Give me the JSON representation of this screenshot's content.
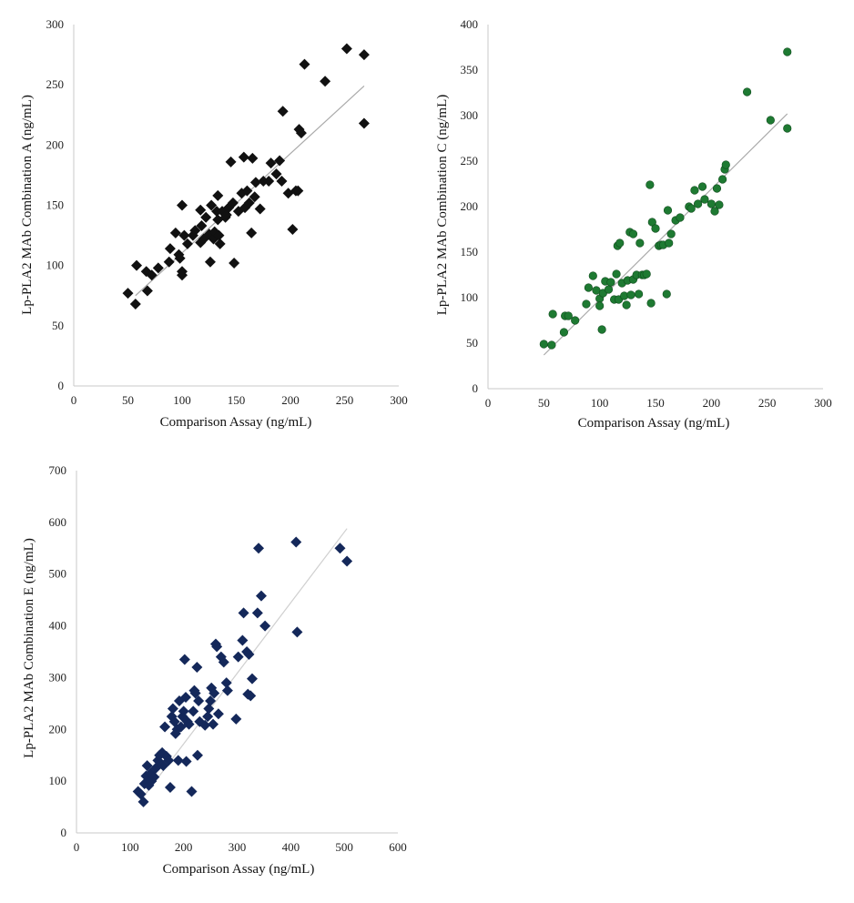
{
  "chart_data": [
    {
      "id": "A",
      "type": "scatter",
      "marker": "diamond",
      "color": "#111111",
      "xlabel": "Comparison Assay (ng/mL)",
      "ylabel": "Lp-PLA2 MAb Combination A (ng/mL)",
      "xlim": [
        0,
        300
      ],
      "ylim": [
        0,
        300
      ],
      "xticks": [
        0,
        50,
        100,
        150,
        200,
        250,
        300
      ],
      "yticks": [
        0,
        50,
        100,
        150,
        200,
        250,
        300
      ],
      "trendline": {
        "x": [
          57,
          268
        ],
        "y": [
          75,
          249
        ],
        "color": "#aaaaaa"
      },
      "points": [
        [
          50,
          77
        ],
        [
          57,
          68
        ],
        [
          58,
          100
        ],
        [
          67,
          95
        ],
        [
          68,
          79
        ],
        [
          72,
          92
        ],
        [
          78,
          98
        ],
        [
          88,
          103
        ],
        [
          89,
          114
        ],
        [
          94,
          127
        ],
        [
          97,
          109
        ],
        [
          98,
          106
        ],
        [
          100,
          95
        ],
        [
          100,
          92
        ],
        [
          100,
          150
        ],
        [
          102,
          125
        ],
        [
          105,
          118
        ],
        [
          110,
          125
        ],
        [
          112,
          129
        ],
        [
          117,
          119
        ],
        [
          117,
          146
        ],
        [
          118,
          133
        ],
        [
          120,
          122
        ],
        [
          122,
          140
        ],
        [
          125,
          126
        ],
        [
          126,
          103
        ],
        [
          127,
          150
        ],
        [
          129,
          122
        ],
        [
          130,
          128
        ],
        [
          132,
          145
        ],
        [
          133,
          158
        ],
        [
          133,
          138
        ],
        [
          134,
          125
        ],
        [
          135,
          118
        ],
        [
          137,
          145
        ],
        [
          140,
          140
        ],
        [
          141,
          142
        ],
        [
          143,
          148
        ],
        [
          145,
          186
        ],
        [
          147,
          152
        ],
        [
          148,
          102
        ],
        [
          152,
          145
        ],
        [
          155,
          160
        ],
        [
          157,
          190
        ],
        [
          158,
          148
        ],
        [
          160,
          162
        ],
        [
          162,
          152
        ],
        [
          164,
          127
        ],
        [
          165,
          189
        ],
        [
          167,
          157
        ],
        [
          168,
          169
        ],
        [
          172,
          147
        ],
        [
          175,
          170
        ],
        [
          180,
          170
        ],
        [
          182,
          185
        ],
        [
          187,
          176
        ],
        [
          190,
          187
        ],
        [
          192,
          170
        ],
        [
          193,
          228
        ],
        [
          198,
          160
        ],
        [
          202,
          130
        ],
        [
          205,
          162
        ],
        [
          207,
          162
        ],
        [
          208,
          213
        ],
        [
          210,
          210
        ],
        [
          213,
          267
        ],
        [
          232,
          253
        ],
        [
          252,
          280
        ],
        [
          268,
          275
        ],
        [
          268,
          218
        ]
      ]
    },
    {
      "id": "C",
      "type": "scatter",
      "marker": "circle",
      "color": "#1e7a32",
      "xlabel": "Comparison Assay (ng/mL)",
      "ylabel": "Lp-PLA2 MAb Combination C (ng/mL)",
      "xlim": [
        0,
        300
      ],
      "ylim": [
        0,
        400
      ],
      "xticks": [
        0,
        50,
        100,
        150,
        200,
        250,
        300
      ],
      "yticks": [
        0,
        50,
        100,
        150,
        200,
        250,
        300,
        350,
        400
      ],
      "trendline": {
        "x": [
          50,
          268
        ],
        "y": [
          37,
          302
        ],
        "color": "#aaaaaa"
      },
      "points": [
        [
          50,
          49
        ],
        [
          57,
          48
        ],
        [
          58,
          82
        ],
        [
          68,
          62
        ],
        [
          69,
          80
        ],
        [
          72,
          80
        ],
        [
          78,
          75
        ],
        [
          88,
          93
        ],
        [
          90,
          111
        ],
        [
          94,
          124
        ],
        [
          97,
          108
        ],
        [
          100,
          99
        ],
        [
          100,
          91
        ],
        [
          102,
          65
        ],
        [
          103,
          105
        ],
        [
          105,
          118
        ],
        [
          108,
          109
        ],
        [
          110,
          117
        ],
        [
          113,
          98
        ],
        [
          115,
          126
        ],
        [
          116,
          157
        ],
        [
          117,
          98
        ],
        [
          118,
          160
        ],
        [
          120,
          116
        ],
        [
          122,
          102
        ],
        [
          124,
          92
        ],
        [
          125,
          119
        ],
        [
          127,
          172
        ],
        [
          128,
          103
        ],
        [
          130,
          170
        ],
        [
          130,
          120
        ],
        [
          133,
          125
        ],
        [
          135,
          104
        ],
        [
          136,
          160
        ],
        [
          138,
          125
        ],
        [
          140,
          125
        ],
        [
          142,
          126
        ],
        [
          145,
          224
        ],
        [
          146,
          94
        ],
        [
          147,
          183
        ],
        [
          150,
          176
        ],
        [
          153,
          157
        ],
        [
          155,
          158
        ],
        [
          157,
          158
        ],
        [
          160,
          104
        ],
        [
          161,
          196
        ],
        [
          162,
          160
        ],
        [
          164,
          170
        ],
        [
          168,
          185
        ],
        [
          172,
          188
        ],
        [
          180,
          200
        ],
        [
          182,
          198
        ],
        [
          185,
          218
        ],
        [
          188,
          203
        ],
        [
          192,
          222
        ],
        [
          194,
          208
        ],
        [
          200,
          203
        ],
        [
          203,
          195
        ],
        [
          205,
          220
        ],
        [
          207,
          202
        ],
        [
          210,
          230
        ],
        [
          212,
          241
        ],
        [
          213,
          246
        ],
        [
          232,
          326
        ],
        [
          253,
          295
        ],
        [
          268,
          286
        ],
        [
          268,
          370
        ]
      ]
    },
    {
      "id": "E",
      "type": "scatter",
      "marker": "diamond",
      "color": "#14285a",
      "xlabel": "Comparison Assay (ng/mL)",
      "ylabel": "Lp-PLA2 MAb Combination E (ng/mL)",
      "xlim": [
        0,
        600
      ],
      "ylim": [
        0,
        700
      ],
      "xticks": [
        0,
        100,
        200,
        300,
        400,
        500,
        600
      ],
      "yticks": [
        0,
        100,
        200,
        300,
        400,
        500,
        600,
        700
      ],
      "trendline": {
        "x": [
          118,
          505
        ],
        "y": [
          60,
          588
        ],
        "color": "#cfcfcf"
      },
      "points": [
        [
          115,
          80
        ],
        [
          120,
          75
        ],
        [
          125,
          60
        ],
        [
          127,
          95
        ],
        [
          130,
          110
        ],
        [
          132,
          130
        ],
        [
          135,
          92
        ],
        [
          138,
          115
        ],
        [
          140,
          100
        ],
        [
          145,
          108
        ],
        [
          148,
          125
        ],
        [
          152,
          140
        ],
        [
          155,
          150
        ],
        [
          160,
          155
        ],
        [
          162,
          130
        ],
        [
          165,
          205
        ],
        [
          168,
          148
        ],
        [
          172,
          140
        ],
        [
          175,
          88
        ],
        [
          178,
          225
        ],
        [
          180,
          240
        ],
        [
          183,
          215
        ],
        [
          185,
          192
        ],
        [
          188,
          200
        ],
        [
          190,
          140
        ],
        [
          192,
          255
        ],
        [
          195,
          205
        ],
        [
          198,
          225
        ],
        [
          200,
          235
        ],
        [
          202,
          335
        ],
        [
          204,
          262
        ],
        [
          205,
          138
        ],
        [
          207,
          215
        ],
        [
          210,
          210
        ],
        [
          215,
          80
        ],
        [
          218,
          235
        ],
        [
          220,
          275
        ],
        [
          222,
          270
        ],
        [
          225,
          320
        ],
        [
          226,
          150
        ],
        [
          228,
          255
        ],
        [
          230,
          215
        ],
        [
          240,
          208
        ],
        [
          245,
          225
        ],
        [
          247,
          240
        ],
        [
          250,
          255
        ],
        [
          252,
          280
        ],
        [
          255,
          210
        ],
        [
          257,
          270
        ],
        [
          260,
          365
        ],
        [
          262,
          360
        ],
        [
          265,
          230
        ],
        [
          270,
          340
        ],
        [
          275,
          330
        ],
        [
          280,
          290
        ],
        [
          282,
          275
        ],
        [
          298,
          220
        ],
        [
          302,
          340
        ],
        [
          310,
          372
        ],
        [
          312,
          425
        ],
        [
          318,
          350
        ],
        [
          320,
          268
        ],
        [
          322,
          345
        ],
        [
          325,
          265
        ],
        [
          328,
          298
        ],
        [
          338,
          425
        ],
        [
          340,
          550
        ],
        [
          345,
          458
        ],
        [
          352,
          400
        ],
        [
          410,
          562
        ],
        [
          412,
          388
        ],
        [
          492,
          550
        ],
        [
          505,
          525
        ]
      ]
    }
  ]
}
